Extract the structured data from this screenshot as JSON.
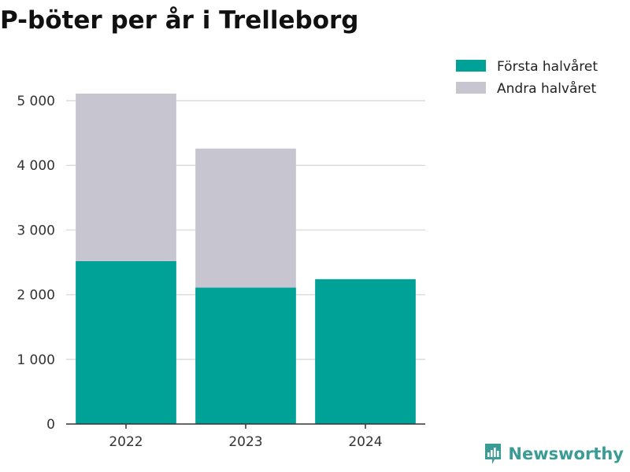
{
  "title": "P-böter per år i Trelleborg",
  "brand": {
    "name": "Newsworthy",
    "icon": "bar-chart-logo-icon"
  },
  "colors": {
    "first_half": "#00a197",
    "second_half": "#c7c6d0",
    "grid": "#dcdcdc",
    "axis": "#333333"
  },
  "chart_data": {
    "type": "bar",
    "stacked": true,
    "categories": [
      "2022",
      "2023",
      "2024"
    ],
    "series": [
      {
        "name": "Första halvåret",
        "values": [
          2520,
          2110,
          2240
        ]
      },
      {
        "name": "Andra halvåret",
        "values": [
          2590,
          2150,
          0
        ]
      }
    ],
    "yticks": [
      0,
      1000,
      2000,
      3000,
      4000,
      5000
    ],
    "ytick_labels": [
      "0",
      "1 000",
      "2 000",
      "3 000",
      "4 000",
      "5 000"
    ],
    "ylim": [
      0,
      5000
    ],
    "grid": true,
    "legend": "top-right",
    "xlabel": "",
    "ylabel": ""
  }
}
